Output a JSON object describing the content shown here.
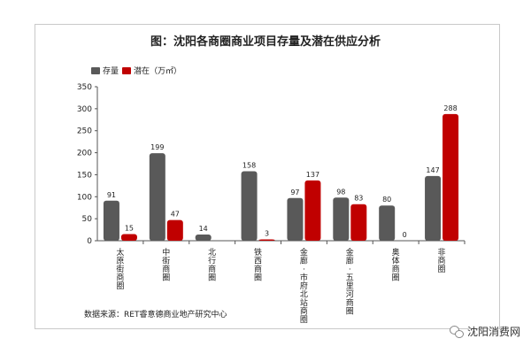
{
  "title": "图：沈阳各商圈商业项目存量及潜在供应分析",
  "source_note": "数据来源：RET睿意德商业地产研究中心",
  "watermark": "沈阳消费网",
  "colors": {
    "stock": "#595959",
    "potential": "#c00000"
  },
  "chart_data": {
    "type": "bar",
    "categories": [
      "太原街商圈",
      "中街商圈",
      "北行商圈",
      "铁西商圈",
      "金廊·市府北站商圈",
      "金廊·五里河商圈",
      "奥体商圈",
      "非商圈"
    ],
    "series": [
      {
        "name": "存量",
        "values": [
          91,
          199,
          14,
          158,
          97,
          98,
          80,
          147
        ]
      },
      {
        "name": "潜在（万㎡）",
        "values": [
          15,
          47,
          null,
          3,
          137,
          83,
          0,
          288
        ]
      }
    ],
    "yticks": [
      "0",
      "50",
      "100",
      "150",
      "200",
      "250",
      "300",
      "350"
    ],
    "ylim": [
      0,
      350
    ],
    "grid": false,
    "legend": "top-left"
  }
}
